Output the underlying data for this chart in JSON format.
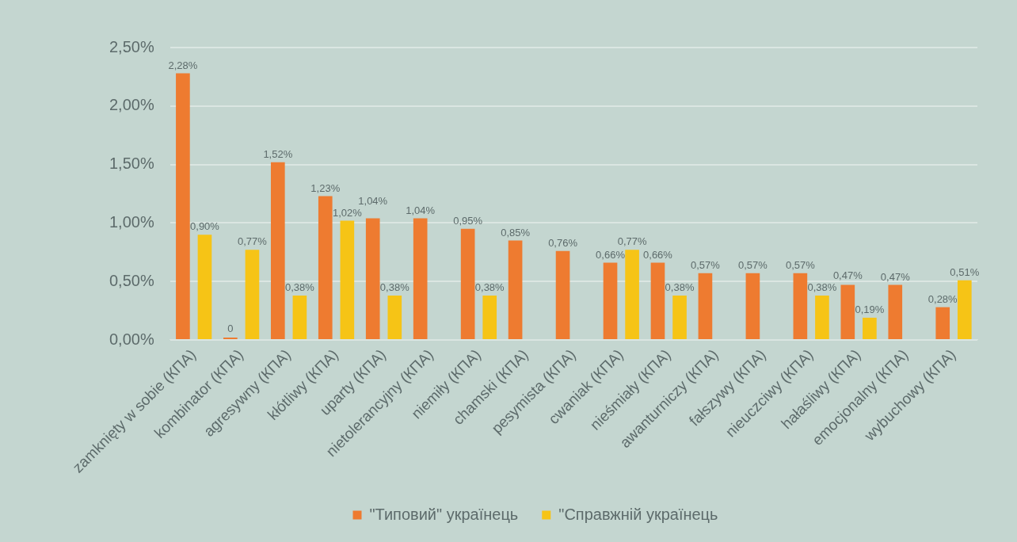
{
  "chart_data": {
    "type": "bar",
    "categories": [
      "zamknięty w sobie (КПА)",
      "kombinator (КПА)",
      "agresywny (КПА)",
      "kłótliwy (КПА)",
      "uparty (КПА)",
      "nietolerancyjny (КПА)",
      "niemiły (КПА)",
      "chamski (КПА)",
      "pesymista (КПА)",
      "cwaniak (КПА)",
      "nieśmiały (КПА)",
      "awanturniczy (КПА)",
      "fałszywy (КПА)",
      "nieuczciwy (КПА)",
      "hałaśliwy (КПА)",
      "emocjonalny (КПА)",
      "wybuchowy (КПА)"
    ],
    "series": [
      {
        "name": "\"Типовий\" українець",
        "color": "#ee7b30",
        "values": [
          2.28,
          0,
          1.52,
          1.23,
          1.04,
          1.04,
          0.95,
          0.85,
          0.76,
          0.66,
          0.66,
          0.57,
          0.57,
          0.57,
          0.47,
          0.47,
          0.28
        ],
        "value_labels": [
          "2,28%",
          "0",
          "1,52%",
          "1,23%",
          "1,04%",
          "1,04%",
          "0,95%",
          "0,85%",
          "0,76%",
          "0,66%",
          "0,66%",
          "0,57%",
          "0,57%",
          "0,57%",
          "0,47%",
          "0,47%",
          "0,28%"
        ]
      },
      {
        "name": "\"Справжній українець",
        "color": "#f6c416",
        "values": [
          0.9,
          0.77,
          0.38,
          1.02,
          0.38,
          null,
          0.38,
          null,
          null,
          0.77,
          0.38,
          null,
          null,
          0.38,
          0.19,
          null,
          0.51
        ],
        "value_labels": [
          "0,90%",
          "0,77%",
          "0,38%",
          "1,02%",
          "0,38%",
          null,
          "0,38%",
          null,
          null,
          "0,77%",
          "0,38%",
          null,
          null,
          "0,38%",
          "0,19%",
          null,
          "0,51%"
        ]
      }
    ],
    "ylim": [
      0,
      2.5
    ],
    "yticks": [
      {
        "value": 0,
        "label": "0,00%"
      },
      {
        "value": 0.5,
        "label": "0,50%"
      },
      {
        "value": 1,
        "label": "1,00%"
      },
      {
        "value": 1.5,
        "label": "1,50%"
      },
      {
        "value": 2,
        "label": "2,00%"
      },
      {
        "value": 2.5,
        "label": "2,50%"
      }
    ],
    "grid": "y",
    "legend": "bottom"
  }
}
